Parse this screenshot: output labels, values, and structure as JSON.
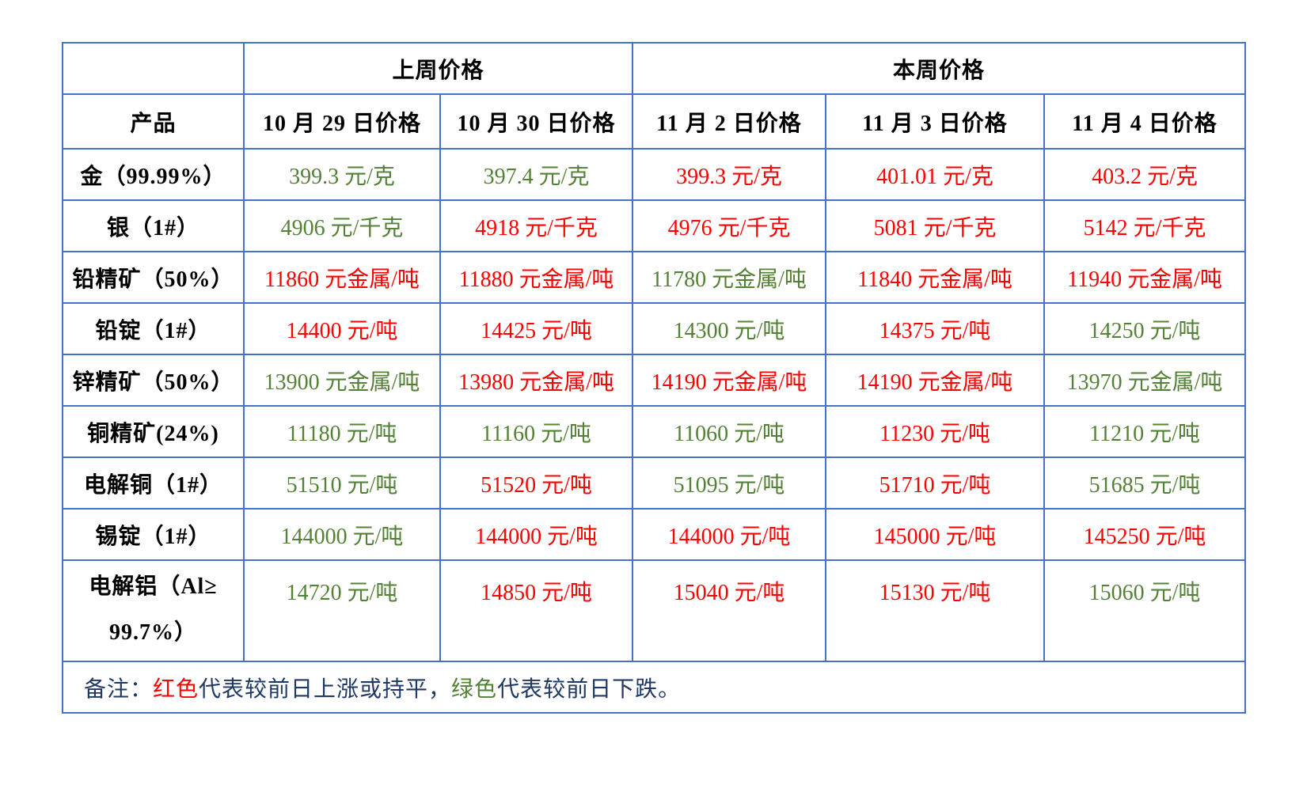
{
  "table": {
    "header_groups": {
      "last_week": "上周价格",
      "this_week": "本周价格"
    },
    "columns": [
      "产品",
      "10 月 29 日价格",
      "10 月 30 日价格",
      "11 月 2 日价格",
      "11 月 3 日价格",
      "11 月 4 日价格"
    ],
    "rows": [
      {
        "product": "金（99.99%）",
        "values": [
          "399.3 元/克",
          "397.4 元/克",
          "399.3 元/克",
          "401.01 元/克",
          "403.2 元/克"
        ],
        "colors": [
          "down",
          "down",
          "up",
          "up",
          "up"
        ]
      },
      {
        "product": "银（1#）",
        "values": [
          "4906 元/千克",
          "4918 元/千克",
          "4976 元/千克",
          "5081 元/千克",
          "5142 元/千克"
        ],
        "colors": [
          "down",
          "up",
          "up",
          "up",
          "up"
        ]
      },
      {
        "product": "铅精矿（50%）",
        "values": [
          "11860 元金属/吨",
          "11880 元金属/吨",
          "11780 元金属/吨",
          "11840 元金属/吨",
          "11940 元金属/吨"
        ],
        "colors": [
          "up",
          "up",
          "down",
          "up",
          "up"
        ]
      },
      {
        "product": "铅锭（1#）",
        "values": [
          "14400 元/吨",
          "14425 元/吨",
          "14300 元/吨",
          "14375 元/吨",
          "14250 元/吨"
        ],
        "colors": [
          "up",
          "up",
          "down",
          "up",
          "down"
        ]
      },
      {
        "product": "锌精矿（50%）",
        "values": [
          "13900 元金属/吨",
          "13980 元金属/吨",
          "14190 元金属/吨",
          "14190 元金属/吨",
          "13970 元金属/吨"
        ],
        "colors": [
          "down",
          "up",
          "up",
          "up",
          "down"
        ]
      },
      {
        "product": "铜精矿(24%)",
        "values": [
          "11180 元/吨",
          "11160 元/吨",
          "11060 元/吨",
          "11230 元/吨",
          "11210 元/吨"
        ],
        "colors": [
          "down",
          "down",
          "down",
          "up",
          "down"
        ]
      },
      {
        "product": "电解铜（1#）",
        "values": [
          "51510 元/吨",
          "51520 元/吨",
          "51095 元/吨",
          "51710 元/吨",
          "51685 元/吨"
        ],
        "colors": [
          "down",
          "up",
          "down",
          "up",
          "down"
        ]
      },
      {
        "product": "锡锭（1#）",
        "values": [
          "144000 元/吨",
          "144000 元/吨",
          "144000 元/吨",
          "145000 元/吨",
          "145250 元/吨"
        ],
        "colors": [
          "down",
          "up",
          "up",
          "up",
          "up"
        ]
      },
      {
        "product_lines": [
          "电解铝（Al≥",
          "99.7%）"
        ],
        "values": [
          "14720 元/吨",
          "14850 元/吨",
          "15040 元/吨",
          "15130 元/吨",
          "15060 元/吨"
        ],
        "colors": [
          "down",
          "up",
          "up",
          "up",
          "down"
        ]
      }
    ],
    "note": {
      "prefix": "备注：",
      "up_word": "红色",
      "middle": "代表较前日上涨或持平，",
      "down_word": "绿色",
      "suffix": "代表较前日下跌。"
    }
  },
  "colors": {
    "up": "#ff0000",
    "down": "#538135",
    "border": "#4472c4",
    "text": "#000000",
    "note_text": "#1f3864"
  }
}
